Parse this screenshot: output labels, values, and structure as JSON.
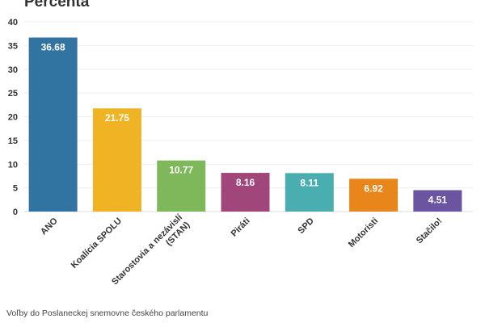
{
  "chart_data": {
    "type": "bar",
    "title": "Percenta",
    "categories": [
      "ANO",
      "Koalícia SPOLU",
      "Starostovia a nezávislí (STAN)",
      "Piráti",
      "SPD",
      "Motoristi",
      "Stačilo!"
    ],
    "category_lines": [
      [
        "ANO"
      ],
      [
        "Koalícia SPOLU"
      ],
      [
        "Starostovia a nezávislí",
        "(STAN)"
      ],
      [
        "Piráti"
      ],
      [
        "SPD"
      ],
      [
        "Motoristi"
      ],
      [
        "Stačilo!"
      ]
    ],
    "values": [
      36.68,
      21.75,
      10.77,
      8.16,
      8.11,
      6.92,
      4.51
    ],
    "data_labels": [
      "36.68",
      "21.75",
      "10.77",
      "8.16",
      "8.11",
      "6.92",
      "4.51"
    ],
    "colors": [
      "#3274a1",
      "#f0b323",
      "#7fb85a",
      "#a0467a",
      "#4aadaf",
      "#e8861c",
      "#6b54a0"
    ],
    "ylim": [
      0,
      40
    ],
    "yticks": [
      0,
      5,
      10,
      15,
      20,
      25,
      30,
      35,
      40
    ],
    "grid": true,
    "legend": "none"
  },
  "footer": {
    "source_text": "Voľby do Poslaneckej snemovne českého parlamentu"
  }
}
